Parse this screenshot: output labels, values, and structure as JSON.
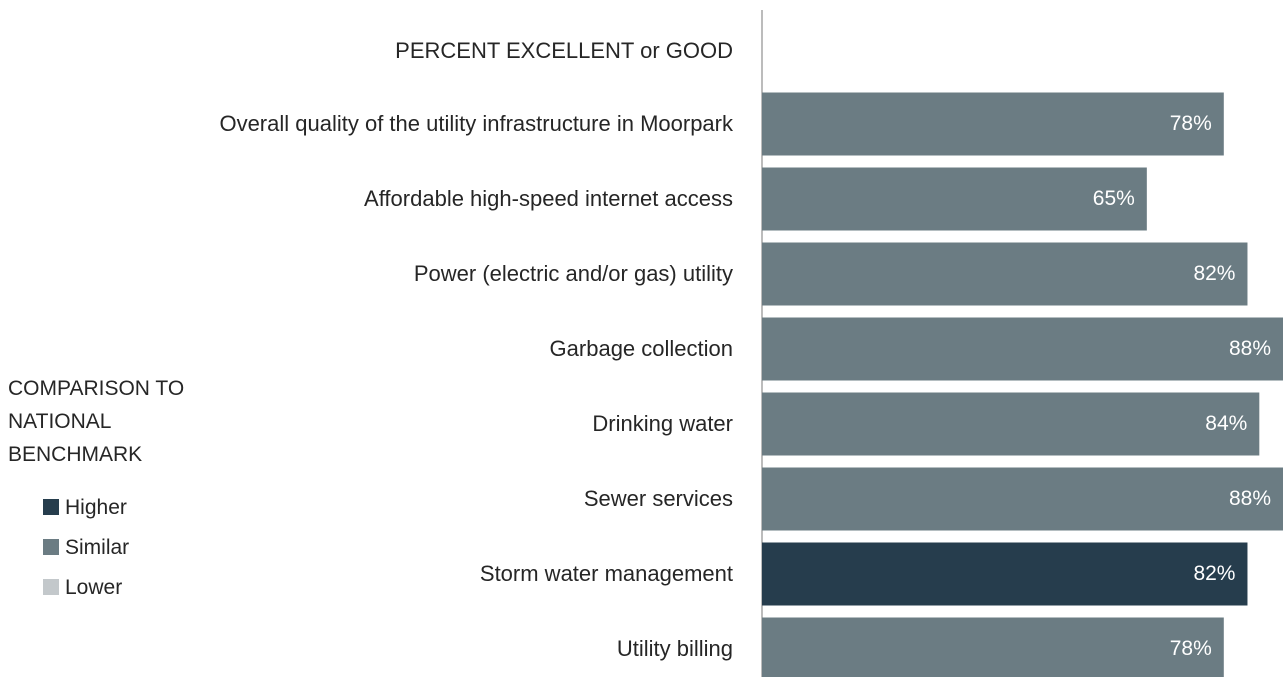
{
  "chart_data": {
    "type": "bar",
    "orientation": "horizontal",
    "header": "PERCENT EXCELLENT or GOOD",
    "categories": [
      "Overall quality of the utility infrastructure in Moorpark",
      "Affordable high-speed internet access",
      "Power (electric and/or gas) utility",
      "Garbage collection",
      "Drinking water",
      "Sewer services",
      "Storm water management",
      "Utility billing"
    ],
    "values": [
      78,
      65,
      82,
      88,
      84,
      88,
      82,
      78
    ],
    "value_labels": [
      "78%",
      "65%",
      "82%",
      "88%",
      "84%",
      "88%",
      "82%",
      "78%"
    ],
    "colors": [
      "#6b7c83",
      "#6b7c83",
      "#6b7c83",
      "#6b7c83",
      "#6b7c83",
      "#6b7c83",
      "#263d4d",
      "#6b7c83"
    ],
    "legend": {
      "title": "COMPARISON TO NATIONAL BENCHMARK",
      "entries": [
        {
          "name": "Higher",
          "color": "#263d4d"
        },
        {
          "name": "Similar",
          "color": "#6b7c83"
        },
        {
          "name": "Lower",
          "color": "#c3c8cb"
        }
      ]
    }
  }
}
